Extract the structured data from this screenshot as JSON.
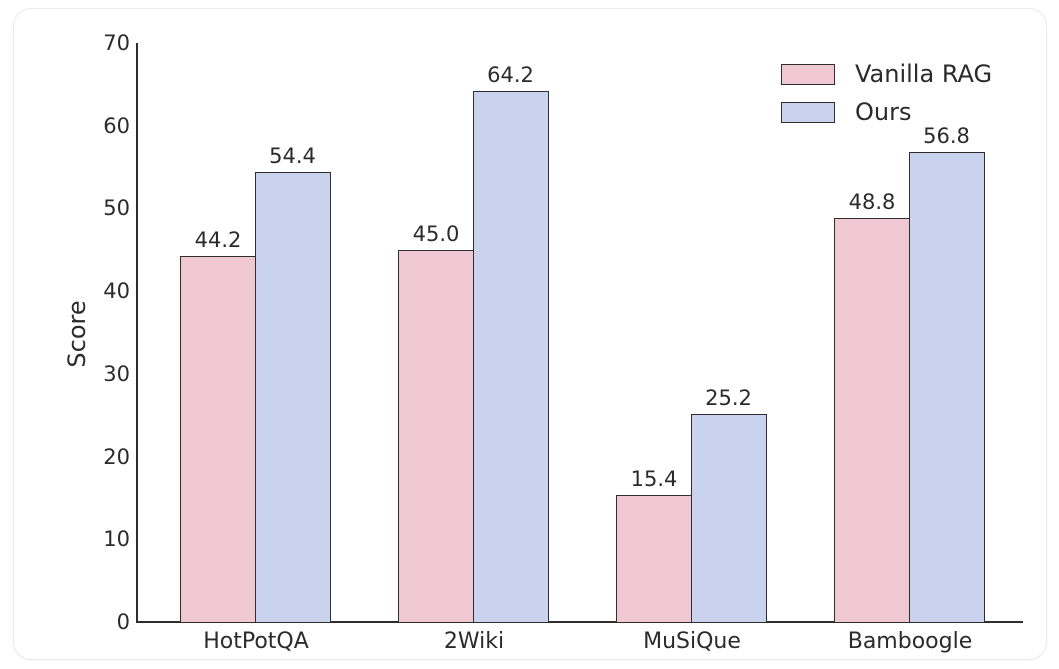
{
  "chart_data": {
    "type": "bar",
    "title": "",
    "xlabel": "",
    "ylabel": "Score",
    "ylim": [
      0,
      70
    ],
    "yticks": [
      0,
      10,
      20,
      30,
      40,
      50,
      60,
      70
    ],
    "grid": false,
    "legend_position": "upper right",
    "categories": [
      "HotPotQA",
      "2Wiki",
      "MuSiQue",
      "Bamboogle"
    ],
    "series": [
      {
        "name": "Vanilla RAG",
        "color": "#f0c8d4",
        "values": [
          44.2,
          45.0,
          15.4,
          48.8
        ]
      },
      {
        "name": "Ours",
        "color": "#cad3ee",
        "values": [
          54.4,
          64.2,
          25.2,
          56.8
        ]
      }
    ],
    "value_label_format": "one-decimal",
    "bar_edge_color": "#2e2e2e",
    "text_color": "#2b2b2b"
  }
}
